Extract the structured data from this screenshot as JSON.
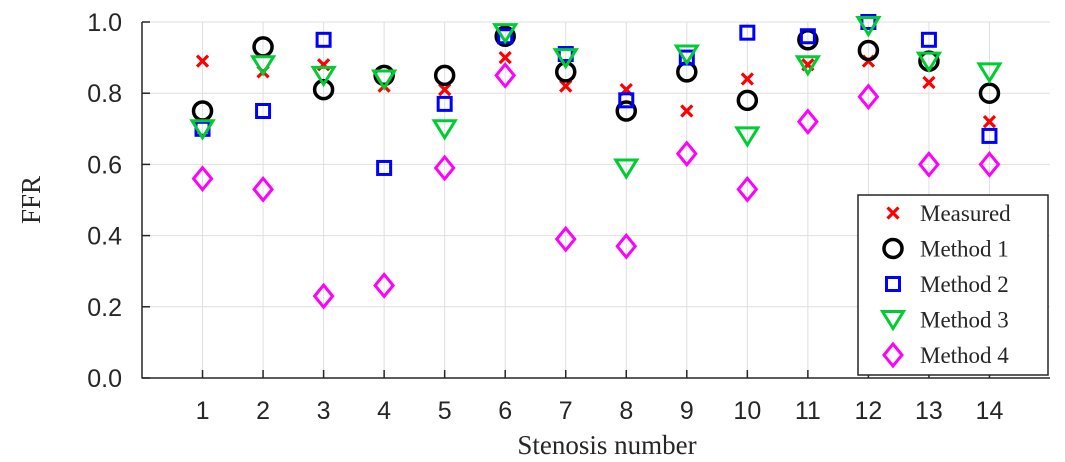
{
  "chart_data": {
    "type": "scatter",
    "title": "",
    "xlabel": "Stenosis number",
    "ylabel": "FFR",
    "x": [
      1,
      2,
      3,
      4,
      5,
      6,
      7,
      8,
      9,
      10,
      11,
      12,
      13,
      14
    ],
    "x_tick_labels": [
      "1",
      "2",
      "3",
      "4",
      "5",
      "6",
      "7",
      "8",
      "9",
      "10",
      "11",
      "12",
      "13",
      "14"
    ],
    "xlim": [
      0,
      15
    ],
    "ylim": [
      0.0,
      1.0
    ],
    "y_ticks": [
      0.0,
      0.2,
      0.4,
      0.6,
      0.8,
      1.0
    ],
    "y_tick_labels": [
      "0.0",
      "0.2",
      "0.4",
      "0.6",
      "0.8",
      "1.0"
    ],
    "grid": true,
    "legend_position": "bottom-right",
    "series": [
      {
        "name": "Measured",
        "marker": "x",
        "color": "#ff0000",
        "values": [
          0.89,
          0.86,
          0.88,
          0.82,
          0.81,
          0.9,
          0.82,
          0.81,
          0.75,
          0.84,
          0.88,
          0.89,
          0.83,
          0.72
        ]
      },
      {
        "name": "Method 1",
        "marker": "circle",
        "color": "#000000",
        "values": [
          0.75,
          0.93,
          0.81,
          0.85,
          0.85,
          0.96,
          0.86,
          0.75,
          0.86,
          0.78,
          0.95,
          0.92,
          0.89,
          0.8
        ]
      },
      {
        "name": "Method 2",
        "marker": "square",
        "color": "#0000ff",
        "values": [
          0.7,
          0.75,
          0.95,
          0.59,
          0.77,
          0.96,
          0.91,
          0.78,
          0.9,
          0.97,
          0.96,
          1.0,
          0.95,
          0.68
        ]
      },
      {
        "name": "Method 3",
        "marker": "triangle-down",
        "color": "#00cc33",
        "values": [
          0.7,
          0.88,
          0.85,
          0.84,
          0.7,
          0.97,
          0.9,
          0.59,
          0.91,
          0.68,
          0.88,
          0.99,
          0.89,
          0.86
        ]
      },
      {
        "name": "Method 4",
        "marker": "diamond",
        "color": "#ff00ff",
        "values": [
          0.56,
          0.53,
          0.23,
          0.26,
          0.59,
          0.85,
          0.39,
          0.37,
          0.63,
          0.53,
          0.72,
          0.79,
          0.6,
          0.6
        ]
      }
    ]
  }
}
